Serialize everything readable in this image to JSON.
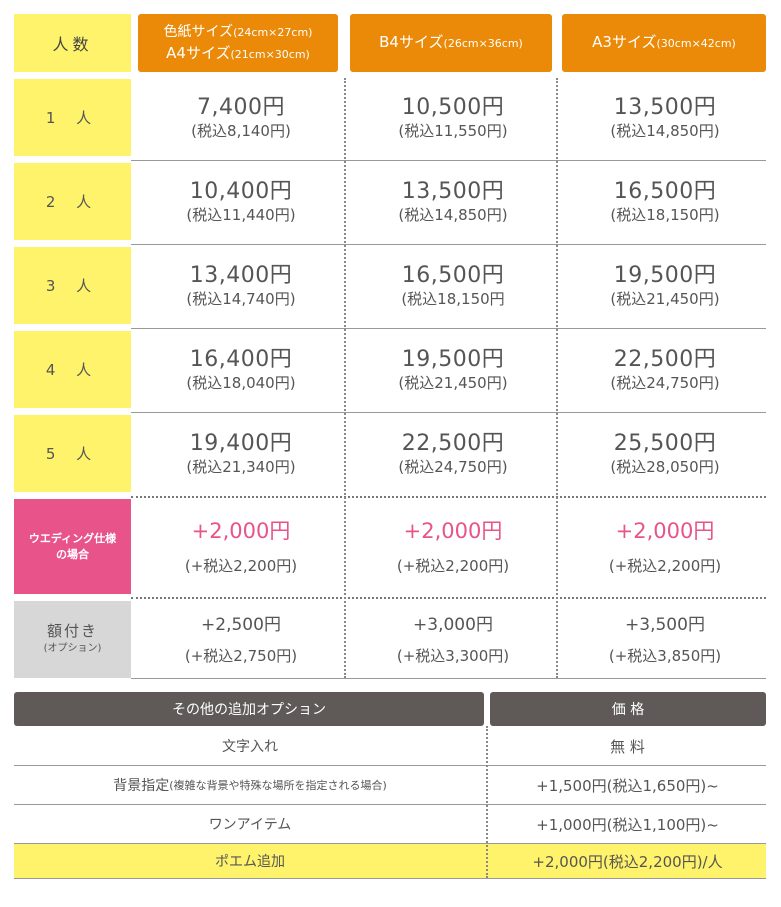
{
  "header": {
    "people": "人数",
    "size1_line1": "色紙サイズ",
    "size1_line1_small": "(24cm×27cm)",
    "size1_line2": "A4サイズ",
    "size1_line2_small": "(21cm×30cm)",
    "size2": "B4サイズ",
    "size2_small": "(26cm×36cm)",
    "size3": "A3サイズ",
    "size3_small": "(30cm×42cm)"
  },
  "rows": [
    {
      "label": "1 人",
      "prices": [
        {
          "price": "7,400円",
          "tax": "(税込8,140円)"
        },
        {
          "price": "10,500円",
          "tax": "(税込11,550円)"
        },
        {
          "price": "13,500円",
          "tax": "(税込14,850円)"
        }
      ]
    },
    {
      "label": "2 人",
      "prices": [
        {
          "price": "10,400円",
          "tax": "(税込11,440円)"
        },
        {
          "price": "13,500円",
          "tax": "(税込14,850円)"
        },
        {
          "price": "16,500円",
          "tax": "(税込18,150円)"
        }
      ]
    },
    {
      "label": "3 人",
      "prices": [
        {
          "price": "13,400円",
          "tax": "(税込14,740円)"
        },
        {
          "price": "16,500円",
          "tax": "(税込18,150円"
        },
        {
          "price": "19,500円",
          "tax": "(税込21,450円)"
        }
      ]
    },
    {
      "label": "4 人",
      "prices": [
        {
          "price": "16,400円",
          "tax": "(税込18,040円)"
        },
        {
          "price": "19,500円",
          "tax": "(税込21,450円)"
        },
        {
          "price": "22,500円",
          "tax": "(税込24,750円)"
        }
      ]
    },
    {
      "label": "5 人",
      "prices": [
        {
          "price": "19,400円",
          "tax": "(税込21,340円)"
        },
        {
          "price": "22,500円",
          "tax": "(税込24,750円)"
        },
        {
          "price": "25,500円",
          "tax": "(税込28,050円)"
        }
      ]
    }
  ],
  "wedding": {
    "label_line1": "ウエディング仕様",
    "label_line2": "の場合",
    "prices": [
      {
        "price": "+2,000円",
        "tax": "(+税込2,200円)"
      },
      {
        "price": "+2,000円",
        "tax": "(+税込2,200円)"
      },
      {
        "price": "+2,000円",
        "tax": "(+税込2,200円)"
      }
    ]
  },
  "frame": {
    "label": "額付き",
    "label_small": "(オプション)",
    "prices": [
      {
        "price": "+2,500円",
        "tax": "(+税込2,750円)"
      },
      {
        "price": "+3,000円",
        "tax": "(+税込3,300円)"
      },
      {
        "price": "+3,500円",
        "tax": "(+税込3,850円)"
      }
    ]
  },
  "options": {
    "header_name": "その他の追加オプション",
    "header_price": "価 格",
    "items": [
      {
        "name": "文字入れ",
        "note": "",
        "price": "無 料"
      },
      {
        "name": "背景指定",
        "note": "(複雑な背景や特殊な場所を指定される場合)",
        "price": "+1,500円(税込1,650円)~"
      },
      {
        "name": "ワンアイテム",
        "note": "",
        "price": "+1,000円(税込1,100円)~"
      },
      {
        "name": "ポエム追加",
        "note": "",
        "price": "+2,000円(税込2,200円)/人"
      }
    ]
  },
  "colors": {
    "yellow": "#fff36b",
    "orange": "#ea8a08",
    "pink": "#e8538a",
    "gray": "#d7d7d7",
    "dark": "#5f5a58"
  }
}
